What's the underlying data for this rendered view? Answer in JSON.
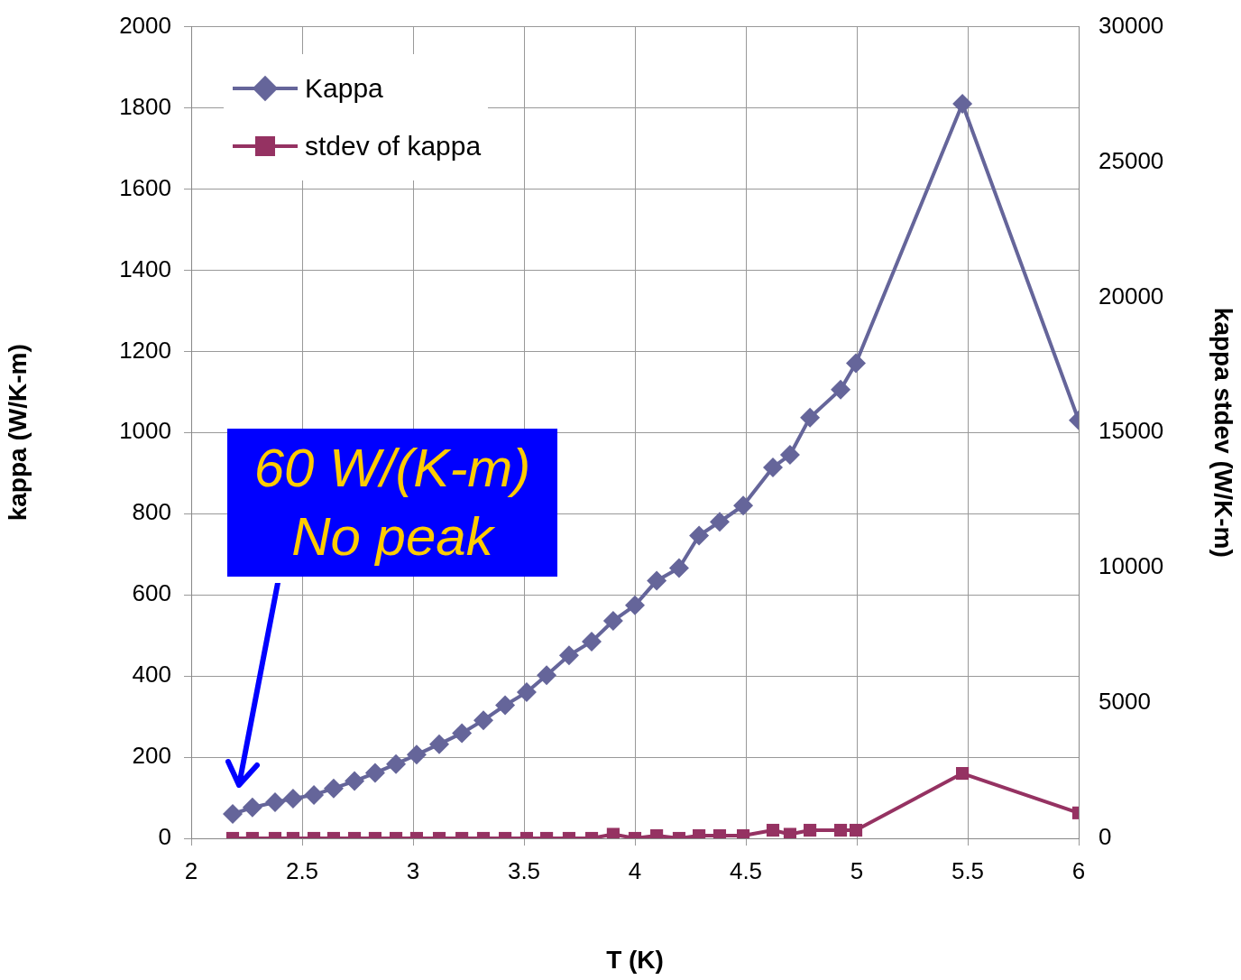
{
  "chart_data": {
    "type": "line",
    "xlabel": "T (K)",
    "ylabel": "kappa (W/K-m)",
    "y2label": "kappa stdev (W/K-m)",
    "x": [
      2.187,
      2.276,
      2.378,
      2.459,
      2.553,
      2.642,
      2.736,
      2.829,
      2.923,
      3.016,
      3.118,
      3.22,
      3.317,
      3.415,
      3.512,
      3.602,
      3.703,
      3.805,
      3.902,
      4.0,
      4.098,
      4.199,
      4.289,
      4.382,
      4.488,
      4.622,
      4.699,
      4.789,
      4.927,
      4.996,
      5.476,
      6.0
    ],
    "series": [
      {
        "name": "Kappa",
        "color": "#65659a",
        "marker": "diamond",
        "values": [
          60,
          76,
          89,
          98,
          107,
          123,
          141,
          161,
          183,
          206,
          232,
          259,
          291,
          328,
          360,
          402,
          451,
          485,
          536,
          574,
          635,
          666,
          746,
          780,
          820,
          914,
          945,
          1037,
          1106,
          1171,
          1810,
          1030
        ]
      },
      {
        "name": "stdev of kappa",
        "color": "#953262",
        "marker": "square",
        "axis": "y2",
        "values": [
          0,
          0,
          0,
          0,
          0,
          0,
          0,
          0,
          0,
          0,
          0,
          0,
          0,
          0,
          0,
          0,
          0,
          0,
          150,
          0,
          100,
          0,
          100,
          100,
          100,
          300,
          150,
          300,
          300,
          300,
          2400,
          940
        ]
      }
    ],
    "xlim": [
      2,
      6
    ],
    "xticks": [
      2,
      2.5,
      3,
      3.5,
      4,
      4.5,
      5,
      5.5,
      6
    ],
    "ylim": [
      0,
      2000
    ],
    "yticks": [
      0,
      200,
      400,
      600,
      800,
      1000,
      1200,
      1400,
      1600,
      1800,
      2000
    ],
    "y2lim": [
      0,
      30000
    ],
    "y2ticks": [
      0,
      5000,
      10000,
      15000,
      20000,
      25000,
      30000
    ],
    "grid": true,
    "legend": "top left",
    "line_style": "solid",
    "annotations": [
      "60 W/(K-m)\nNo peak"
    ]
  }
}
